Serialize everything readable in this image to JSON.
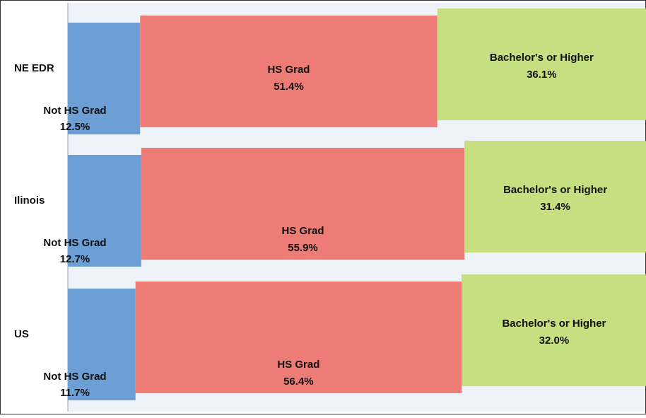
{
  "chart_data": {
    "type": "stacked-bar-100",
    "orientation": "horizontal",
    "categories": [
      "NE EDR",
      "Ilinois",
      "US"
    ],
    "xlim": [
      0,
      100
    ],
    "series": [
      {
        "name": "Not HS Grad",
        "color": "#6b9fd6",
        "values": [
          12.5,
          12.7,
          11.7
        ],
        "value_labels": [
          "12.5%",
          "12.7%",
          "11.7%"
        ]
      },
      {
        "name": "HS Grad",
        "color": "#ec7c75",
        "values": [
          51.4,
          55.9,
          56.4
        ],
        "value_labels": [
          "51.4%",
          "55.9%",
          "56.4%"
        ]
      },
      {
        "name": "Bachelor's or Higher",
        "color": "#c6df80",
        "values": [
          36.1,
          31.4,
          32.0
        ],
        "value_labels": [
          "36.1%",
          "31.4%",
          "32.0%"
        ]
      }
    ]
  }
}
